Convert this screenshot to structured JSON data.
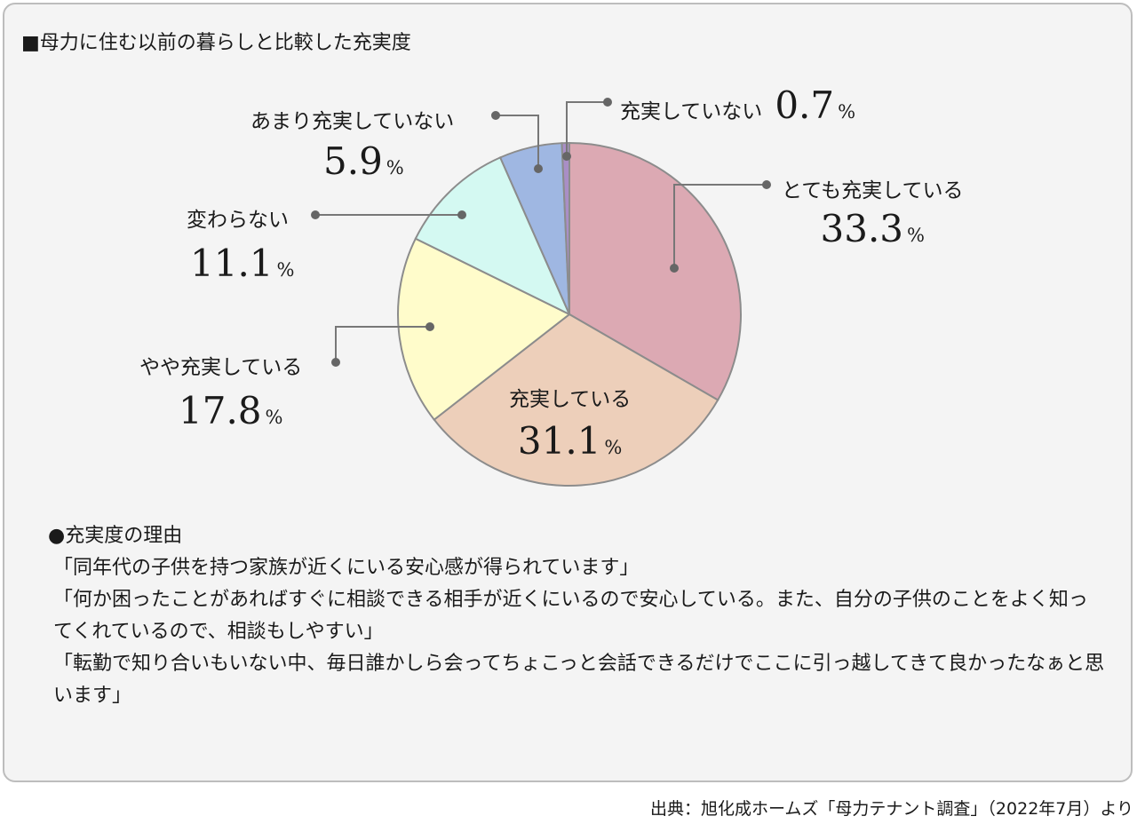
{
  "title": "■母力に住む以前の暮らしと比較した充実度",
  "chart_data": {
    "type": "pie",
    "title": "■母力に住む以前の暮らしと比較した充実度",
    "unit": "%",
    "categories": [
      "とても充実している",
      "充実している",
      "やや充実している",
      "変わらない",
      "あまり充実していない",
      "充実していない"
    ],
    "values": [
      33.3,
      31.1,
      17.8,
      11.1,
      5.9,
      0.7
    ],
    "value_labels": [
      "33.3",
      "31.1",
      "17.8",
      "11.1",
      "5.9",
      "0.7"
    ],
    "colors": [
      "#dca9b3",
      "#edcfba",
      "#fffccb",
      "#d4f9f2",
      "#9fb7e2",
      "#a98ec6"
    ],
    "start": "12 o'clock",
    "direction": "clockwise"
  },
  "reasons": {
    "heading": "●充実度の理由",
    "items": [
      "「同年代の子供を持つ家族が近くにいる安心感が得られています」",
      "「何か困ったことがあればすぐに相談できる相手が近くにいるので安心している。また、自分の子供のことをよく知ってくれているので、相談もしやすい」",
      "「転勤で知り合いもいない中、毎日誰かしら会ってちょこっと会話できるだけでここに引っ越してきて良かったなぁと思います」"
    ]
  },
  "source": "出典：旭化成ホームズ「母力テナント調査」（2022年7月）より"
}
